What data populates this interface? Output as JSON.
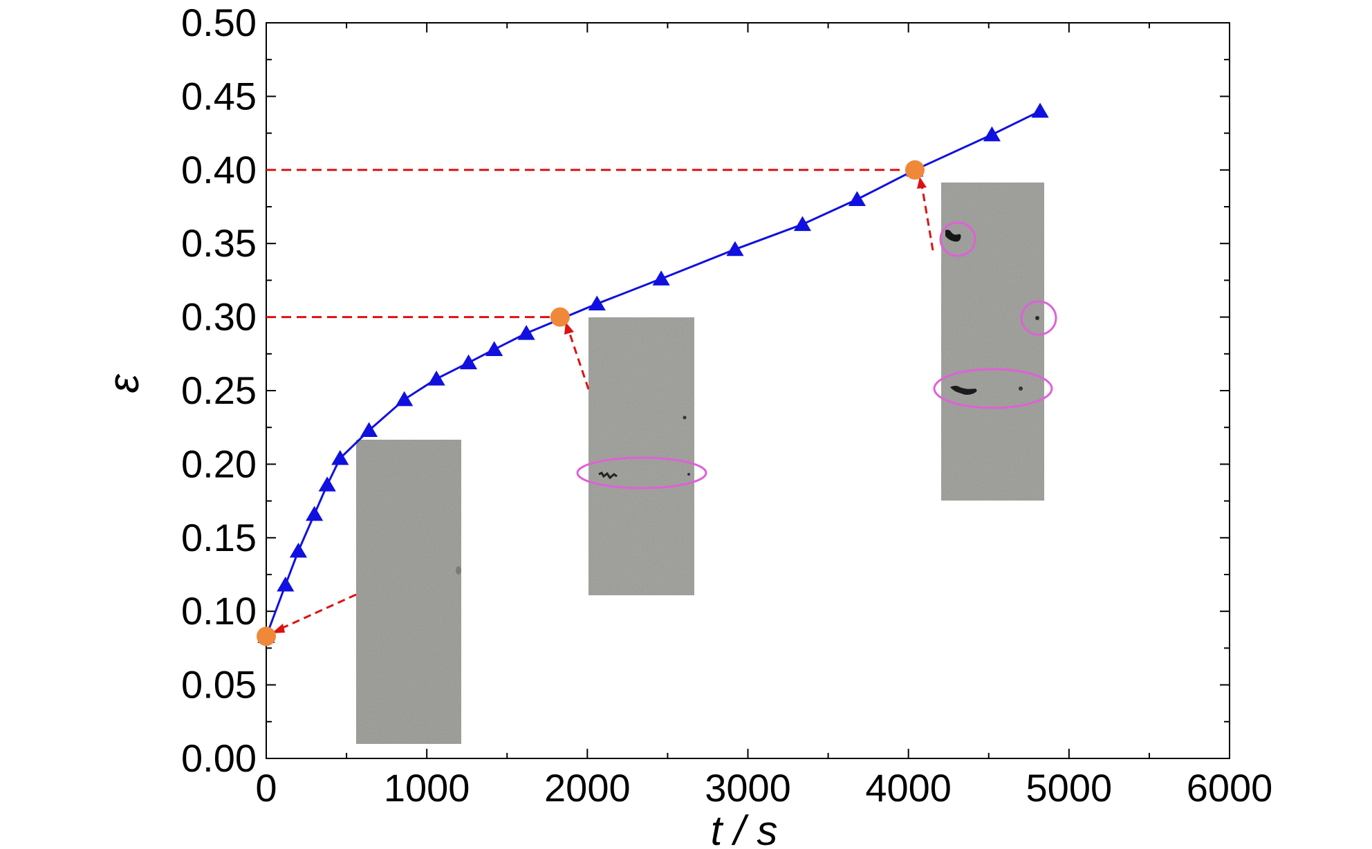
{
  "chart_data": {
    "type": "line",
    "title": "",
    "xlabel": "t / s",
    "ylabel": "ε",
    "xlim": [
      0,
      6000
    ],
    "ylim": [
      0,
      0.5
    ],
    "x_ticks": [
      0,
      1000,
      2000,
      3000,
      4000,
      5000,
      6000
    ],
    "y_ticks": [
      0.0,
      0.05,
      0.1,
      0.15,
      0.2,
      0.25,
      0.3,
      0.35,
      0.4,
      0.45,
      0.5
    ],
    "grid": false,
    "series": [
      {
        "name": "",
        "marker": "triangle",
        "color": "#1010e0",
        "x": [
          0,
          120,
          200,
          300,
          380,
          460,
          640,
          860,
          1060,
          1260,
          1420,
          1620,
          2060,
          2460,
          2920,
          3340,
          3680,
          4040,
          4520,
          4820
        ],
        "y": [
          0.083,
          0.118,
          0.141,
          0.166,
          0.186,
          0.204,
          0.223,
          0.244,
          0.258,
          0.269,
          0.278,
          0.289,
          0.309,
          0.326,
          0.346,
          0.363,
          0.38,
          0.4,
          0.424,
          0.44
        ]
      }
    ],
    "highlight_points": {
      "color": "#f0883a",
      "x": [
        0,
        1830,
        4040
      ],
      "y": [
        0.083,
        0.3,
        0.4
      ]
    },
    "reference_lines": {
      "color": "#dd1111",
      "style": "dashed",
      "y_values": [
        0.3,
        0.4
      ]
    },
    "insets": [
      {
        "description": "specimen surface photo, no visible defects",
        "linked_point": 0,
        "highlight_ellipses": 0
      },
      {
        "description": "specimen surface photo with a small band of defects",
        "linked_point": 1,
        "highlight_ellipses": 1
      },
      {
        "description": "specimen surface photo with several defects",
        "linked_point": 2,
        "highlight_ellipses": 3
      }
    ],
    "colors": {
      "axis": "#000000",
      "ellipse": "#e060d8",
      "photo": "#a9a9a5"
    }
  }
}
